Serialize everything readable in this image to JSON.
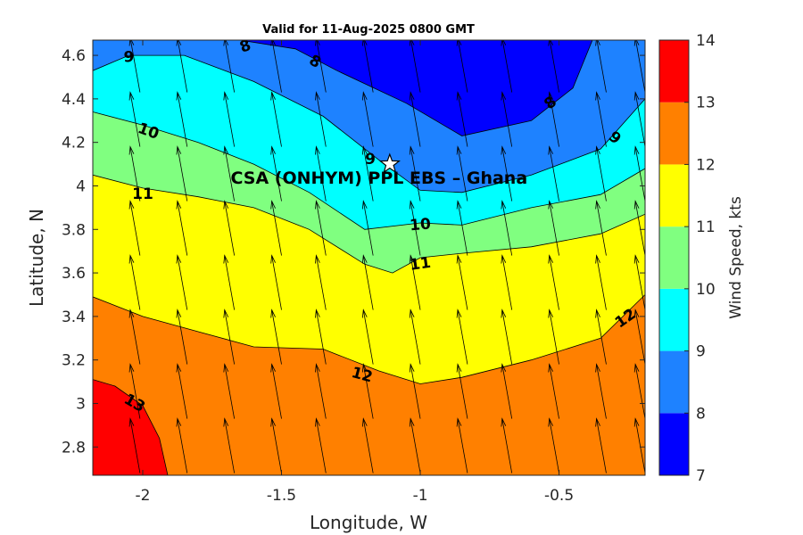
{
  "chart_data": {
    "type": "contour",
    "title": "Valid for 11-Aug-2025 0800 GMT",
    "xlabel": "Longitude, W",
    "ylabel": "Latitude, N",
    "xlim": [
      -2.18,
      -0.19
    ],
    "ylim": [
      2.67,
      4.67
    ],
    "xticks": [
      -2,
      -1.5,
      -1,
      -0.5
    ],
    "xtick_labels": [
      "-2",
      "-1.5",
      "-1",
      "-0.5"
    ],
    "yticks": [
      2.8,
      3,
      3.2,
      3.4,
      3.6,
      3.8,
      4,
      4.2,
      4.4,
      4.6
    ],
    "ytick_labels": [
      "2.8",
      "3",
      "3.2",
      "3.4",
      "3.6",
      "3.8",
      "4",
      "4.2",
      "4.4",
      "4.6"
    ],
    "colorbar": {
      "label": "Wind Speed, kts",
      "levels": [
        7,
        8,
        9,
        10,
        11,
        12,
        13,
        14
      ],
      "tick_labels": [
        "7",
        "8",
        "9",
        "10",
        "11",
        "12",
        "13",
        "14"
      ],
      "colors": [
        "#0000ff",
        "#1e82ff",
        "#00ffff",
        "#80ff80",
        "#ffff00",
        "#ff8000",
        "#ff0000"
      ]
    },
    "contours": [
      {
        "level": 8,
        "color": "#1e82ff",
        "x": [
          -1.65,
          -1.45,
          -1.3,
          -1.05,
          -0.85,
          -0.6,
          -0.45,
          -0.38
        ],
        "y": [
          4.67,
          4.63,
          4.53,
          4.38,
          4.23,
          4.3,
          4.45,
          4.67
        ]
      },
      {
        "level": 9,
        "color": "#00ffff",
        "x": [
          -2.18,
          -2.05,
          -1.85,
          -1.6,
          -1.35,
          -1.15,
          -1,
          -0.85,
          -0.6,
          -0.35,
          -0.19
        ],
        "y": [
          4.53,
          4.6,
          4.6,
          4.48,
          4.32,
          4.12,
          3.98,
          3.97,
          4.05,
          4.17,
          4.4
        ]
      },
      {
        "level": 10,
        "color": "#80ff80",
        "x": [
          -2.18,
          -2,
          -1.8,
          -1.6,
          -1.4,
          -1.2,
          -1,
          -0.85,
          -0.6,
          -0.35,
          -0.19
        ],
        "y": [
          4.34,
          4.28,
          4.2,
          4.1,
          3.97,
          3.8,
          3.83,
          3.82,
          3.9,
          3.96,
          4.08
        ]
      },
      {
        "level": 11,
        "color": "#ffff00",
        "x": [
          -2.18,
          -2,
          -1.8,
          -1.6,
          -1.4,
          -1.2,
          -1.1,
          -1,
          -0.85,
          -0.6,
          -0.35,
          -0.19
        ],
        "y": [
          4.05,
          3.99,
          3.95,
          3.9,
          3.8,
          3.64,
          3.6,
          3.67,
          3.69,
          3.72,
          3.78,
          3.87
        ]
      },
      {
        "level": 12,
        "color": "#ff8000",
        "x": [
          -2.18,
          -2,
          -1.8,
          -1.6,
          -1.35,
          -1.15,
          -1,
          -0.85,
          -0.6,
          -0.35,
          -0.19
        ],
        "y": [
          3.49,
          3.4,
          3.33,
          3.26,
          3.25,
          3.15,
          3.09,
          3.12,
          3.2,
          3.3,
          3.5
        ]
      },
      {
        "level": 13,
        "color": "#ff0000",
        "x": [
          -2.18,
          -2.1,
          -2,
          -1.94,
          -1.91
        ],
        "y": [
          3.11,
          3.08,
          2.99,
          2.84,
          2.67
        ]
      }
    ],
    "contour_labels": [
      {
        "text": "9",
        "x": -2.05,
        "y": 4.59,
        "angle": 0
      },
      {
        "text": "8",
        "x": -1.63,
        "y": 4.64,
        "angle": -20
      },
      {
        "text": "8",
        "x": -1.38,
        "y": 4.57,
        "angle": 30
      },
      {
        "text": "8",
        "x": -0.53,
        "y": 4.38,
        "angle": -40
      },
      {
        "text": "9",
        "x": -0.3,
        "y": 4.22,
        "angle": 40
      },
      {
        "text": "9",
        "x": -1.18,
        "y": 4.12,
        "angle": 0
      },
      {
        "text": "10",
        "x": -1.98,
        "y": 4.25,
        "angle": 20
      },
      {
        "text": "11",
        "x": -2.0,
        "y": 3.96,
        "angle": 0
      },
      {
        "text": "10",
        "x": -1.0,
        "y": 3.82,
        "angle": -5
      },
      {
        "text": "11",
        "x": -1.0,
        "y": 3.64,
        "angle": -8
      },
      {
        "text": "12",
        "x": -1.21,
        "y": 3.13,
        "angle": 15
      },
      {
        "text": "12",
        "x": -0.26,
        "y": 3.39,
        "angle": -35
      },
      {
        "text": "13",
        "x": -2.03,
        "y": 3.0,
        "angle": 30
      }
    ],
    "wind_vectors": {
      "description": "arrows point roughly north, slightly NNW",
      "x": [
        -2.18,
        -2.01,
        -1.84,
        -1.67,
        -1.5,
        -1.34,
        -1.17,
        -1.0,
        -0.83,
        -0.67,
        -0.5,
        -0.33,
        -0.19
      ],
      "y": [
        2.68,
        2.93,
        3.18,
        3.43,
        3.68,
        3.93,
        4.18,
        4.43,
        4.67
      ],
      "dx": -0.035,
      "dy": 0.25
    },
    "site": {
      "label": "CSA (ONHYM) PPL EBS  – Ghana",
      "x": -1.11,
      "y": 4.1,
      "marker": "star"
    }
  }
}
